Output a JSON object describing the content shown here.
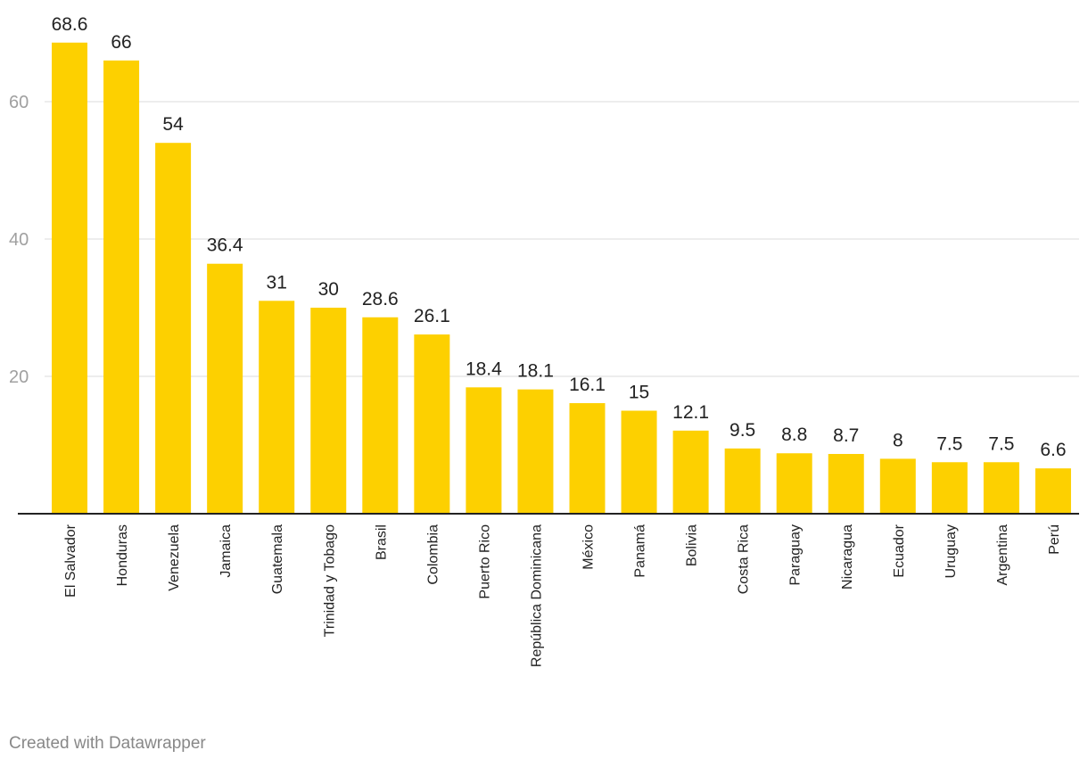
{
  "chart_data": {
    "type": "bar",
    "categories": [
      "El Salvador",
      "Honduras",
      "Venezuela",
      "Jamaica",
      "Guatemala",
      "Trinidad y Tobago",
      "Brasil",
      "Colombia",
      "Puerto Rico",
      "República Dominicana",
      "México",
      "Panamá",
      "Bolivia",
      "Costa Rica",
      "Paraguay",
      "Nicaragua",
      "Ecuador",
      "Uruguay",
      "Argentina",
      "Perú"
    ],
    "values": [
      68.6,
      66,
      54,
      36.4,
      31,
      30,
      28.6,
      26.1,
      18.4,
      18.1,
      16.1,
      15,
      12.1,
      9.5,
      8.8,
      8.7,
      8,
      7.5,
      7.5,
      6.6
    ],
    "value_labels": [
      "68.6",
      "66",
      "54",
      "36.4",
      "31",
      "30",
      "28.6",
      "26.1",
      "18.4",
      "18.1",
      "16.1",
      "15",
      "12.1",
      "9.5",
      "8.8",
      "8.7",
      "8",
      "7.5",
      "7.5",
      "6.6"
    ],
    "y_ticks": [
      20,
      40,
      60
    ],
    "ylim": [
      0,
      70
    ],
    "grid": true,
    "title": "",
    "xlabel": "",
    "ylabel": "",
    "bar_color": "#fdd000"
  },
  "footer": {
    "credit": "Created with Datawrapper"
  }
}
